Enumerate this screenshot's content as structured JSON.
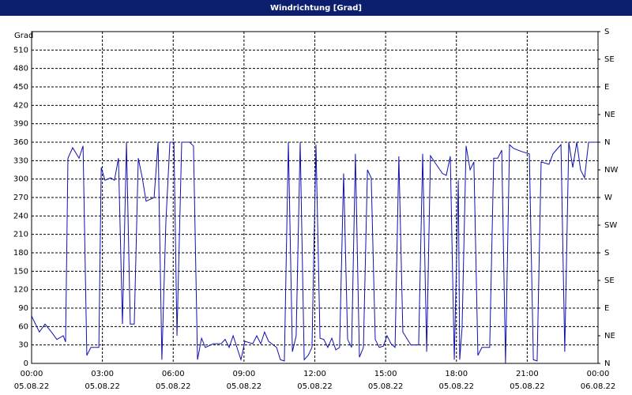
{
  "chart_data": {
    "type": "line",
    "title": "Windrichtung [Grad]",
    "ylabel": "Grad",
    "xlim": [
      0,
      24
    ],
    "xticks": [
      {
        "value": 0,
        "label": "00:00"
      },
      {
        "value": 3,
        "label": "03:00"
      },
      {
        "value": 6,
        "label": "06:00"
      },
      {
        "value": 9,
        "label": "09:00"
      },
      {
        "value": 12,
        "label": "12:00"
      },
      {
        "value": 15,
        "label": "15:00"
      },
      {
        "value": 18,
        "label": "18:00"
      },
      {
        "value": 21,
        "label": "21:00"
      },
      {
        "value": 24,
        "label": "00:00"
      }
    ],
    "xtick_dates": [
      "05.08.22",
      "05.08.22",
      "05.08.22",
      "05.08.22",
      "05.08.22",
      "05.08.22",
      "05.08.22",
      "05.08.22",
      "06.08.22"
    ],
    "ylim": [
      0,
      540
    ],
    "yticks": [
      0,
      30,
      60,
      90,
      120,
      150,
      180,
      210,
      240,
      270,
      300,
      330,
      360,
      390,
      420,
      450,
      480,
      510
    ],
    "y2lim": [
      0,
      540
    ],
    "y2ticks": [
      {
        "value": 0,
        "label": "N"
      },
      {
        "value": 45,
        "label": "NE"
      },
      {
        "value": 90,
        "label": "E"
      },
      {
        "value": 135,
        "label": "SE"
      },
      {
        "value": 180,
        "label": "S"
      },
      {
        "value": 225,
        "label": "SW"
      },
      {
        "value": 270,
        "label": "W"
      },
      {
        "value": 315,
        "label": "NW"
      },
      {
        "value": 360,
        "label": "N"
      },
      {
        "value": 405,
        "label": "NE"
      },
      {
        "value": 450,
        "label": "E"
      },
      {
        "value": 495,
        "label": "SE"
      },
      {
        "value": 540,
        "label": "S"
      }
    ],
    "grid": true,
    "x": [
      0,
      0.33,
      0.57,
      0.84,
      1.07,
      1.34,
      1.44,
      1.54,
      1.74,
      2.01,
      2.18,
      2.34,
      2.51,
      2.85,
      2.95,
      3.11,
      3.35,
      3.51,
      3.68,
      3.85,
      4.02,
      4.18,
      4.35,
      4.52,
      4.69,
      4.85,
      5.19,
      5.36,
      5.52,
      5.69,
      5.86,
      6.03,
      6.16,
      6.36,
      6.69,
      6.86,
      7.03,
      7.2,
      7.36,
      7.7,
      8.03,
      8.2,
      8.37,
      8.54,
      8.7,
      8.87,
      9.04,
      9.37,
      9.54,
      9.71,
      9.87,
      10.04,
      10.38,
      10.54,
      10.71,
      10.88,
      11.05,
      11.21,
      11.38,
      11.55,
      11.72,
      11.88,
      12.05,
      12.22,
      12.38,
      12.55,
      12.72,
      12.89,
      13.05,
      13.22,
      13.39,
      13.56,
      13.72,
      13.89,
      14.06,
      14.23,
      14.39,
      14.56,
      14.73,
      14.9,
      15.06,
      15.23,
      15.4,
      15.56,
      15.73,
      16.07,
      16.4,
      16.57,
      16.74,
      16.9,
      17.07,
      17.41,
      17.57,
      17.74,
      17.91,
      18.08,
      18.14,
      18.24,
      18.41,
      18.58,
      18.74,
      18.91,
      19.08,
      19.25,
      19.41,
      19.58,
      19.75,
      19.92,
      20.08,
      20.25,
      20.42,
      20.75,
      21.09,
      21.26,
      21.42,
      21.59,
      21.92,
      22.09,
      22.43,
      22.59,
      22.76,
      22.93,
      23.1,
      23.26,
      23.43,
      23.6,
      24
    ],
    "series": [
      {
        "color": "#1010b0",
        "values": [
          77,
          51,
          64,
          51,
          39,
          45,
          35,
          334,
          351,
          334,
          354,
          13,
          26,
          26,
          319,
          298,
          302,
          298,
          334,
          64,
          360,
          64,
          64,
          334,
          302,
          264,
          270,
          360,
          6,
          231,
          360,
          360,
          45,
          360,
          360,
          354,
          6,
          41,
          26,
          32,
          32,
          39,
          26,
          45,
          26,
          6,
          36,
          32,
          45,
          32,
          51,
          36,
          26,
          6,
          4,
          360,
          19,
          45,
          360,
          6,
          13,
          26,
          356,
          41,
          39,
          26,
          41,
          22,
          26,
          309,
          39,
          26,
          341,
          10,
          26,
          315,
          302,
          39,
          26,
          28,
          45,
          32,
          26,
          337,
          51,
          30,
          30,
          341,
          19,
          338,
          328,
          309,
          306,
          337,
          6,
          298,
          6,
          58,
          354,
          315,
          328,
          13,
          26,
          26,
          26,
          334,
          334,
          347,
          0,
          356,
          350,
          345,
          341,
          6,
          4,
          328,
          324,
          341,
          356,
          19,
          360,
          319,
          360,
          315,
          302,
          360,
          360
        ]
      }
    ]
  }
}
